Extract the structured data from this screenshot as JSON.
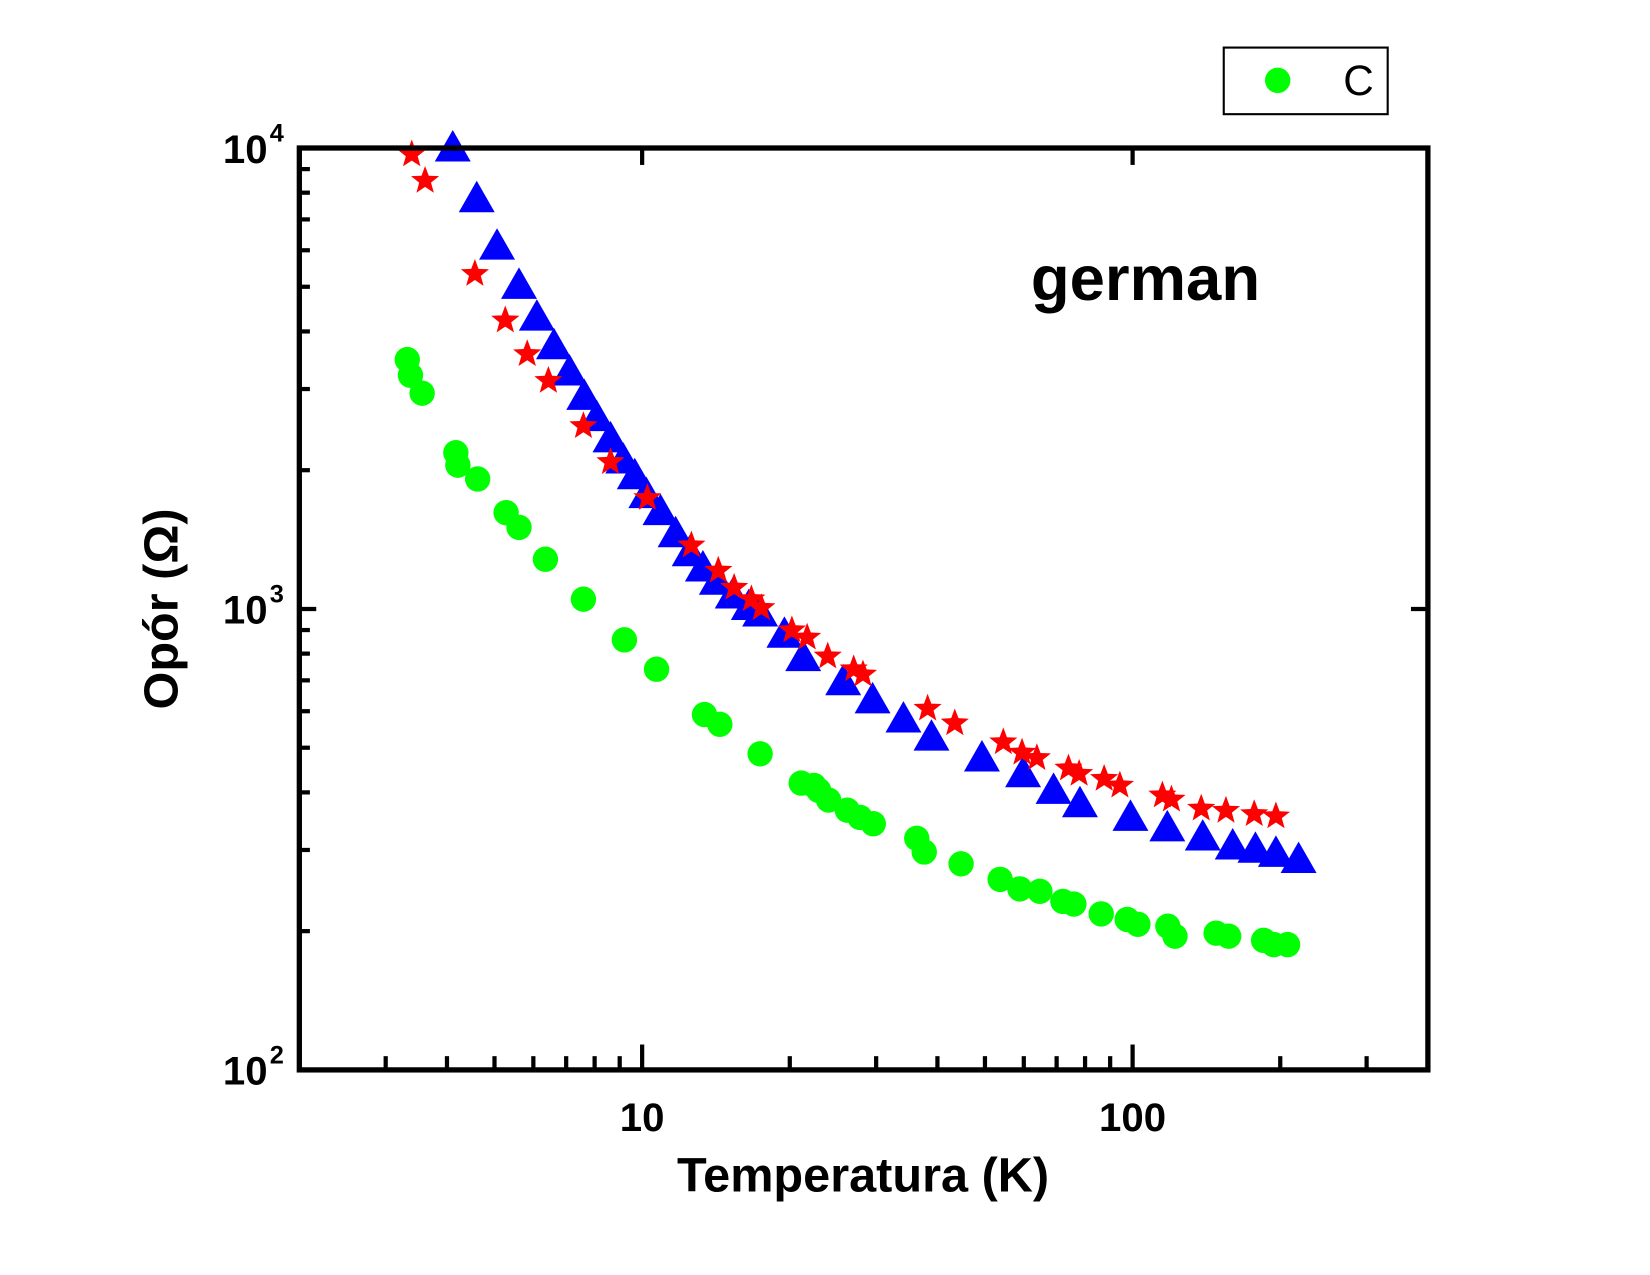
{
  "chart_data": {
    "type": "scatter",
    "title": "",
    "xlabel": "Temperatura (K)",
    "ylabel": "Opór (Ω)",
    "xscale": "log",
    "yscale": "log",
    "xlim": [
      2,
      400
    ],
    "ylim": [
      100,
      10000
    ],
    "grid": false,
    "legend": {
      "position": "top-right, outside plot",
      "entries": [
        "C"
      ]
    },
    "annotation": "german",
    "xticks": [
      {
        "value": 10,
        "label": "10"
      },
      {
        "value": 100,
        "label": "100"
      }
    ],
    "yticks": [
      {
        "value": 100,
        "base": "10",
        "exp": "2"
      },
      {
        "value": 1000,
        "base": "10",
        "exp": "3"
      },
      {
        "value": 10000,
        "base": "10",
        "exp": "4"
      }
    ],
    "series": [
      {
        "name": "C",
        "marker": "circle",
        "color": "#00ff00",
        "x": [
          3.32,
          3.37,
          3.56,
          4.17,
          4.21,
          4.62,
          5.28,
          5.61,
          6.35,
          7.59,
          9.2,
          10.7,
          13.4,
          14.4,
          17.4,
          21.1,
          22.4,
          22.9,
          24.0,
          26.2,
          27.8,
          29.6,
          36.3,
          37.6,
          44.7,
          53.7,
          58.9,
          64.7,
          72.1,
          75.9,
          86.3,
          97.5,
          102.5,
          118,
          122,
          148,
          157,
          185,
          194,
          207
        ],
        "y": [
          3475,
          3214,
          2938,
          2183,
          2051,
          1914,
          1618,
          1503,
          1282,
          1050,
          857,
          740,
          590,
          562,
          485,
          419,
          414,
          404,
          385,
          366,
          353,
          342,
          318,
          297,
          280,
          259,
          247,
          244,
          232,
          229,
          218,
          212,
          207,
          205,
          195,
          198,
          195,
          191,
          187,
          187
        ]
      },
      {
        "marker": "triangle",
        "color": "#0000ff",
        "x": [
          4.11,
          4.6,
          5.06,
          5.61,
          6.1,
          6.61,
          7.11,
          7.62,
          8.08,
          8.62,
          9.15,
          9.66,
          10.2,
          10.9,
          11.7,
          12.5,
          13.3,
          14.2,
          15.3,
          16.5,
          17.4,
          19.5,
          21.3,
          25.7,
          29.5,
          34.1,
          38.9,
          49.3,
          59.8,
          69.0,
          78.1,
          99,
          117.7,
          139,
          160,
          178,
          196,
          218
        ],
        "y": [
          10000,
          7762,
          6124,
          5035,
          4295,
          3724,
          3266,
          2891,
          2600,
          2339,
          2104,
          1945,
          1770,
          1626,
          1456,
          1324,
          1227,
          1148,
          1072,
          1012,
          980,
          881,
          784,
          695,
          635,
          577,
          527,
          475,
          439,
          404,
          378,
          353,
          335,
          320,
          306,
          301,
          295,
          286
        ]
      },
      {
        "marker": "star",
        "color": "#ff0000",
        "x": [
          3.39,
          3.61,
          4.56,
          5.26,
          5.83,
          6.44,
          7.59,
          8.62,
          10.25,
          12.6,
          14.3,
          15.4,
          16.7,
          17.5,
          20.2,
          21.7,
          23.9,
          27.0,
          28.2,
          38.2,
          43.4,
          54.5,
          59.5,
          63.8,
          74.0,
          77.8,
          87.5,
          94.2,
          115,
          120,
          138,
          155,
          177,
          196
        ],
        "y": [
          9687,
          8492,
          5333,
          4227,
          3573,
          3126,
          2494,
          2084,
          1741,
          1374,
          1211,
          1112,
          1050,
          1005,
          899,
          867,
          789,
          740,
          721,
          608,
          565,
          514,
          488,
          475,
          451,
          439,
          428,
          414,
          394,
          386,
          369,
          365,
          359,
          355
        ]
      }
    ]
  }
}
